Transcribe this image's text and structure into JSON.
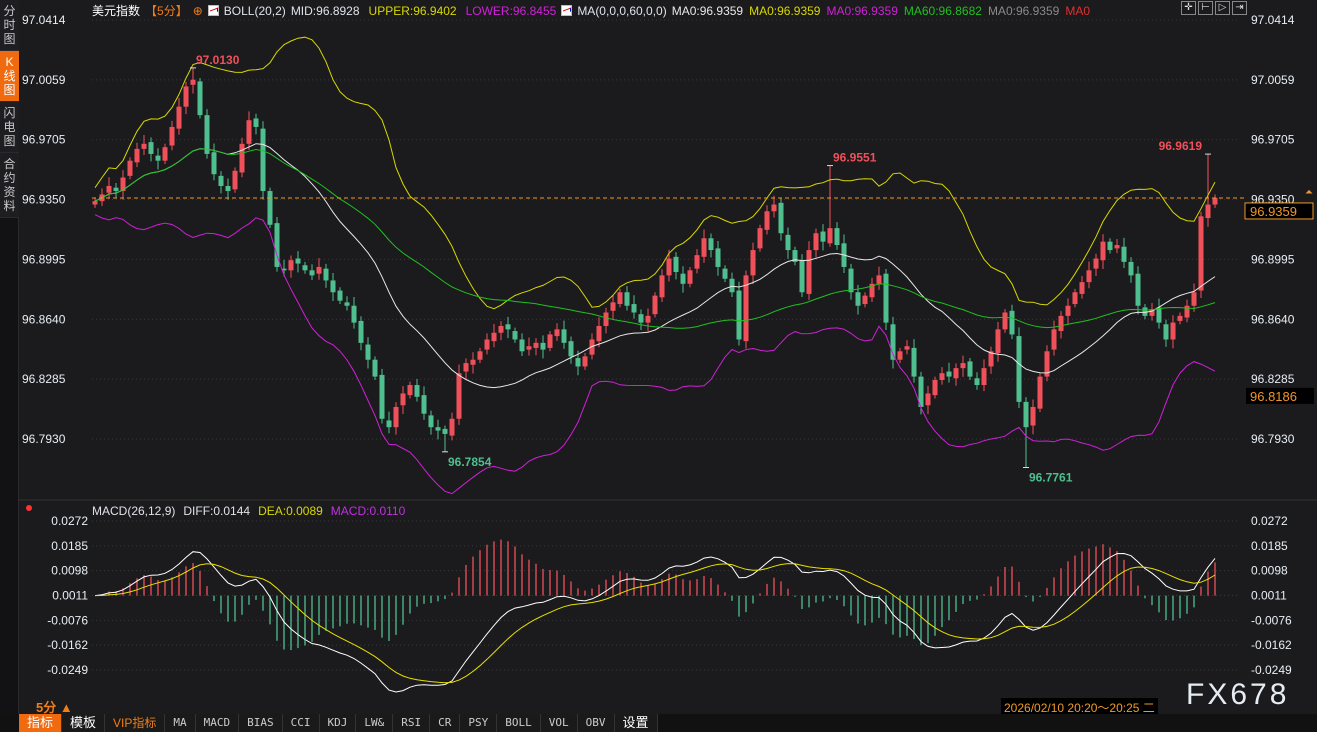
{
  "sidebar": {
    "tabs": [
      {
        "label": "分时图"
      },
      {
        "label": "K线图",
        "active": true
      },
      {
        "label": "闪电图"
      },
      {
        "label": "合约资料"
      }
    ]
  },
  "legend": {
    "symbol": "美元指数",
    "period": "【5分】",
    "boll_name": "BOLL(20,2)",
    "mid": "MID:96.8928",
    "upper": "UPPER:96.9402",
    "lower": "LOWER:96.8455",
    "ma_name": "MA(0,0,0,60,0,0)",
    "ma_items": [
      {
        "text": "MA0:96.9359",
        "color": "#e8e8e8"
      },
      {
        "text": "MA0:96.9359",
        "color": "#d8d800"
      },
      {
        "text": "MA0:96.9359",
        "color": "#d020d8"
      },
      {
        "text": "MA60:96.8682",
        "color": "#20c020"
      },
      {
        "text": "MA0:96.9359",
        "color": "#8a8a8a"
      },
      {
        "text": "MA0",
        "color": "#e03030"
      }
    ]
  },
  "tool_icons": [
    "crosshair-icon",
    "zoom-start-icon",
    "play-icon",
    "goto-end-icon"
  ],
  "price_axis": {
    "labels": [
      "97.0414",
      "97.0059",
      "96.9705",
      "96.9350",
      "96.8995",
      "96.8640",
      "96.8285",
      "96.7930"
    ],
    "min": 96.793,
    "max": 97.0414
  },
  "current_price": "96.9359",
  "marker_price": "96.8186",
  "colors": {
    "up": "#f0505a",
    "down": "#4fbf8f",
    "mid": "#e8e8e8",
    "upper": "#d8d800",
    "lower": "#d020d8",
    "ma60": "#20c020",
    "diff": "#ffffff",
    "dea": "#e8e000",
    "accent": "#f06a0f"
  },
  "chart_data": {
    "type": "candlestick",
    "close": [
      96.934,
      96.938,
      96.943,
      96.94,
      96.948,
      96.958,
      96.965,
      96.968,
      96.962,
      96.958,
      96.966,
      96.978,
      96.99,
      97.002,
      97.006,
      96.985,
      96.962,
      96.95,
      96.943,
      96.94,
      96.952,
      96.968,
      96.982,
      96.978,
      96.94,
      96.92,
      96.895,
      96.893,
      96.899,
      96.897,
      96.893,
      96.89,
      96.895,
      96.887,
      96.88,
      96.875,
      96.872,
      96.862,
      96.85,
      96.84,
      96.83,
      96.805,
      96.8,
      96.812,
      96.82,
      96.825,
      96.818,
      96.808,
      96.8,
      96.798,
      96.796,
      96.805,
      96.832,
      96.838,
      96.84,
      96.845,
      96.852,
      96.856,
      96.86,
      96.858,
      96.852,
      96.845,
      96.848,
      96.85,
      96.846,
      96.855,
      96.858,
      96.85,
      96.842,
      96.836,
      96.842,
      96.852,
      96.86,
      96.868,
      96.874,
      96.88,
      96.872,
      96.868,
      96.862,
      96.866,
      96.878,
      96.89,
      96.9,
      96.892,
      96.885,
      96.893,
      96.902,
      96.912,
      96.905,
      96.895,
      96.888,
      96.88,
      96.852,
      96.89,
      96.905,
      96.918,
      96.928,
      96.932,
      96.915,
      96.905,
      96.898,
      96.88,
      96.905,
      96.915,
      96.91,
      96.918,
      96.908,
      96.895,
      96.88,
      96.872,
      96.878,
      96.885,
      96.89,
      96.862,
      96.84,
      96.845,
      96.848,
      96.83,
      96.812,
      96.82,
      96.828,
      96.832,
      96.83,
      96.835,
      96.838,
      96.83,
      96.825,
      96.835,
      96.845,
      96.858,
      96.868,
      96.855,
      96.815,
      96.8,
      96.812,
      96.83,
      96.845,
      96.858,
      96.866,
      96.872,
      96.88,
      96.886,
      96.893,
      96.9,
      96.91,
      96.905,
      96.908,
      96.898,
      96.89,
      96.872,
      96.866,
      96.87,
      96.862,
      96.852,
      96.862,
      96.866,
      96.872,
      96.88,
      96.925,
      96.932,
      96.936
    ],
    "extremes": [
      {
        "index": 14,
        "type": "high",
        "value": "97.0130"
      },
      {
        "index": 50,
        "type": "low",
        "value": "96.7854"
      },
      {
        "index": 105,
        "type": "high",
        "value": "96.9551"
      },
      {
        "index": 133,
        "type": "low",
        "value": "96.7761"
      },
      {
        "index": 159,
        "type": "high",
        "value": "96.9619"
      }
    ],
    "indicators": [
      "BOLL(20,2)",
      "MA60"
    ]
  },
  "macd": {
    "name": "MACD(26,12,9)",
    "diff": "DIFF:0.0144",
    "dea": "DEA:0.0089",
    "macd": "MACD:0.0110",
    "axis": {
      "labels": [
        "0.0272",
        "0.0185",
        "0.0098",
        "0.0011",
        "-0.0076",
        "-0.0162",
        "-0.0249"
      ],
      "min": -0.0249,
      "max": 0.0272
    }
  },
  "period_selector": "5分 ▲",
  "datetime": "2026/02/10 20:20～20:25 二",
  "watermark": "FX678",
  "toolbar": [
    "指标",
    "模板",
    "VIP指标",
    "MA",
    "MACD",
    "BIAS",
    "CCI",
    "KDJ",
    "LW&",
    "RSI",
    "CR",
    "PSY",
    "BOLL",
    "VOL",
    "OBV",
    "设置"
  ]
}
